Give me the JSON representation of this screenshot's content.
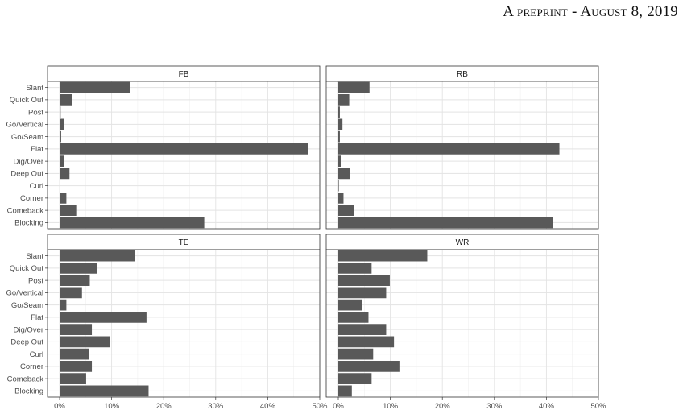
{
  "header": {
    "text": "A preprint - August 8, 2019"
  },
  "chart_data": {
    "type": "bar",
    "orientation": "horizontal",
    "facets": [
      "FB",
      "RB",
      "TE",
      "WR"
    ],
    "categories": [
      "Slant",
      "Quick Out",
      "Post",
      "Go/Vertical",
      "Go/Seam",
      "Flat",
      "Dig/Over",
      "Deep Out",
      "Curl",
      "Corner",
      "Comeback",
      "Blocking"
    ],
    "xticks": [
      "0%",
      "10%",
      "20%",
      "30%",
      "40%",
      "50%"
    ],
    "xlim": [
      0,
      50
    ],
    "bar_color": "#595959",
    "panels": [
      {
        "name": "FB",
        "values": [
          13.5,
          2.4,
          0.2,
          0.8,
          0.3,
          47.8,
          0.8,
          1.9,
          0.1,
          1.3,
          3.2,
          27.8
        ]
      },
      {
        "name": "RB",
        "values": [
          6.0,
          2.1,
          0.3,
          0.8,
          0.3,
          42.5,
          0.5,
          2.2,
          0.1,
          1.0,
          3.0,
          41.3
        ]
      },
      {
        "name": "TE",
        "values": [
          14.4,
          7.2,
          5.8,
          4.3,
          1.3,
          16.7,
          6.2,
          9.7,
          5.7,
          6.2,
          5.1,
          17.1
        ]
      },
      {
        "name": "WR",
        "values": [
          17.1,
          6.4,
          9.9,
          9.2,
          4.5,
          5.8,
          9.2,
          10.7,
          6.7,
          11.9,
          6.4,
          2.6
        ]
      }
    ]
  }
}
